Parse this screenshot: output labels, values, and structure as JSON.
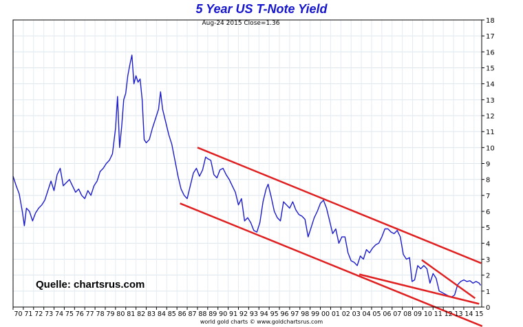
{
  "chart_data": {
    "type": "line",
    "title": "5 Year US T-Note Yield",
    "subtitle": "Aug-24 2015   Close=1.36",
    "source_text": "Quelle: chartsrus.com",
    "credit": "world gold charts © www.goldchartsrus.com",
    "xlabel": "",
    "ylabel": "",
    "ylim": [
      0,
      18
    ],
    "xlim": [
      1970.0,
      2015.75
    ],
    "y_ticks": [
      "0",
      "1",
      "2",
      "3",
      "4",
      "5",
      "6",
      "7",
      "8",
      "9",
      "10",
      "11",
      "12",
      "13",
      "14",
      "15",
      "16",
      "17",
      "18"
    ],
    "x_ticks": [
      "70",
      "71",
      "72",
      "73",
      "74",
      "75",
      "76",
      "77",
      "78",
      "79",
      "80",
      "81",
      "82",
      "83",
      "84",
      "85",
      "86",
      "87",
      "88",
      "89",
      "90",
      "91",
      "92",
      "93",
      "94",
      "95",
      "96",
      "97",
      "98",
      "99",
      "00",
      "01",
      "02",
      "03",
      "04",
      "05",
      "06",
      "07",
      "08",
      "09",
      "10",
      "11",
      "12",
      "13",
      "14",
      "15"
    ],
    "grid": true,
    "series": [
      {
        "color": "#1a1acc",
        "x": [
          1970.0,
          1970.3,
          1970.6,
          1970.9,
          1971.1,
          1971.3,
          1971.6,
          1971.9,
          1972.2,
          1972.5,
          1972.8,
          1973.1,
          1973.4,
          1973.7,
          1974.0,
          1974.3,
          1974.6,
          1974.9,
          1975.2,
          1975.5,
          1975.8,
          1976.1,
          1976.4,
          1976.7,
          1977.0,
          1977.3,
          1977.6,
          1977.9,
          1978.2,
          1978.5,
          1978.8,
          1979.1,
          1979.4,
          1979.7,
          1980.0,
          1980.2,
          1980.4,
          1980.6,
          1980.8,
          1981.0,
          1981.2,
          1981.4,
          1981.6,
          1981.8,
          1982.0,
          1982.2,
          1982.4,
          1982.6,
          1982.8,
          1983.0,
          1983.3,
          1983.6,
          1983.9,
          1984.2,
          1984.4,
          1984.6,
          1984.9,
          1985.2,
          1985.5,
          1985.8,
          1986.1,
          1986.4,
          1986.7,
          1987.0,
          1987.3,
          1987.6,
          1987.9,
          1988.2,
          1988.5,
          1988.8,
          1989.0,
          1989.3,
          1989.6,
          1989.9,
          1990.2,
          1990.5,
          1990.8,
          1991.1,
          1991.4,
          1991.7,
          1992.0,
          1992.3,
          1992.6,
          1992.9,
          1993.2,
          1993.5,
          1993.8,
          1994.1,
          1994.4,
          1994.7,
          1994.9,
          1995.2,
          1995.5,
          1995.8,
          1996.1,
          1996.4,
          1996.7,
          1997.0,
          1997.3,
          1997.6,
          1997.9,
          1998.2,
          1998.5,
          1998.8,
          1999.1,
          1999.4,
          1999.7,
          2000.0,
          2000.3,
          2000.6,
          2000.9,
          2001.2,
          2001.5,
          2001.8,
          2002.1,
          2002.4,
          2002.7,
          2003.0,
          2003.3,
          2003.6,
          2003.9,
          2004.2,
          2004.5,
          2004.8,
          2005.1,
          2005.4,
          2005.7,
          2006.0,
          2006.3,
          2006.6,
          2006.9,
          2007.2,
          2007.5,
          2007.8,
          2008.1,
          2008.4,
          2008.7,
          2008.95,
          2009.2,
          2009.5,
          2009.8,
          2010.1,
          2010.4,
          2010.7,
          2011.0,
          2011.3,
          2011.6,
          2011.9,
          2012.2,
          2012.5,
          2012.8,
          2013.1,
          2013.4,
          2013.7,
          2014.0,
          2014.3,
          2014.6,
          2014.9,
          2015.2,
          2015.5,
          2015.65
        ],
        "y": [
          8.2,
          7.6,
          7.1,
          6.0,
          5.1,
          6.2,
          6.0,
          5.4,
          5.9,
          6.2,
          6.4,
          6.7,
          7.3,
          7.9,
          7.3,
          8.3,
          8.7,
          7.6,
          7.8,
          8.0,
          7.6,
          7.2,
          7.4,
          7.0,
          6.8,
          7.3,
          7.0,
          7.6,
          7.9,
          8.5,
          8.7,
          9.0,
          9.2,
          9.6,
          11.2,
          13.2,
          10.0,
          11.3,
          13.0,
          13.4,
          14.5,
          15.2,
          15.8,
          14.0,
          14.5,
          14.1,
          14.3,
          13.0,
          10.5,
          10.3,
          10.5,
          11.2,
          11.8,
          12.4,
          13.5,
          12.4,
          11.6,
          10.8,
          10.2,
          9.2,
          8.2,
          7.4,
          7.0,
          6.8,
          7.6,
          8.4,
          8.7,
          8.2,
          8.6,
          9.4,
          9.3,
          9.2,
          8.3,
          8.1,
          8.6,
          8.7,
          8.3,
          8.0,
          7.6,
          7.2,
          6.4,
          6.8,
          5.4,
          5.6,
          5.3,
          4.8,
          4.7,
          5.3,
          6.6,
          7.4,
          7.7,
          6.9,
          6.0,
          5.6,
          5.4,
          6.6,
          6.4,
          6.2,
          6.6,
          6.1,
          5.8,
          5.7,
          5.5,
          4.4,
          5.0,
          5.6,
          6.0,
          6.5,
          6.7,
          6.2,
          5.4,
          4.6,
          4.9,
          4.0,
          4.4,
          4.4,
          3.4,
          2.9,
          2.8,
          2.6,
          3.2,
          3.0,
          3.6,
          3.4,
          3.7,
          3.9,
          4.0,
          4.4,
          4.9,
          4.9,
          4.7,
          4.6,
          4.8,
          4.4,
          3.3,
          3.0,
          3.1,
          1.6,
          1.7,
          2.6,
          2.4,
          2.6,
          2.4,
          1.5,
          2.1,
          1.8,
          1.0,
          0.9,
          0.8,
          0.7,
          0.62,
          0.75,
          1.4,
          1.6,
          1.7,
          1.6,
          1.65,
          1.5,
          1.6,
          1.5,
          1.36
        ]
      }
    ],
    "trend_lines": [
      {
        "color": "#e02020",
        "x": [
          1988.0,
          2015.7
        ],
        "y": [
          10.0,
          2.75
        ]
      },
      {
        "color": "#e02020",
        "x": [
          1986.3,
          2015.8
        ],
        "y": [
          6.5,
          -1.2
        ]
      },
      {
        "color": "#e02020",
        "x": [
          2003.8,
          2015.5
        ],
        "y": [
          2.05,
          0.2
        ]
      },
      {
        "color": "#e02020",
        "x": [
          2009.9,
          2015.1
        ],
        "y": [
          2.95,
          0.55
        ]
      }
    ]
  }
}
